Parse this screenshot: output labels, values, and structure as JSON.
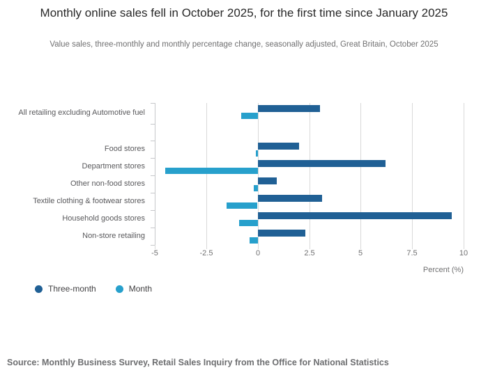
{
  "header": {
    "title": "Monthly online sales fell in October 2025, for the first time since January 2025",
    "subtitle": "Value sales, three-monthly and monthly percentage change, seasonally adjusted, Great Britain, October 2025"
  },
  "chart_data": {
    "type": "bar",
    "orientation": "horizontal",
    "title": "Monthly online sales fell in October 2025, for the first time since January 2025",
    "subtitle": "Value sales, three-monthly and monthly percentage change, seasonally adjusted, Great Britain, October 2025",
    "categories": [
      "All retailing excluding Automotive fuel",
      "Food stores",
      "Department stores",
      "Other non-food stores",
      "Textile clothing & footwear stores",
      "Household goods stores",
      "Non-store retailing"
    ],
    "series": [
      {
        "name": "Three-month",
        "color": "#206095",
        "values": [
          3.0,
          2.0,
          6.2,
          0.9,
          3.1,
          9.4,
          2.3
        ]
      },
      {
        "name": "Month",
        "color": "#27a0cc",
        "values": [
          -0.8,
          -0.1,
          -4.5,
          -0.2,
          -1.5,
          -0.9,
          -0.4
        ]
      }
    ],
    "xlabel": "Percent (%)",
    "ylabel": "",
    "xlim": [
      -5,
      10
    ],
    "xticks": [
      -5,
      -2.5,
      0,
      2.5,
      5,
      7.5,
      10
    ],
    "grid": true,
    "legend_position": "bottom-left"
  },
  "legend": {
    "items": [
      {
        "label": "Three-month",
        "color": "#206095"
      },
      {
        "label": "Month",
        "color": "#27a0cc"
      }
    ]
  },
  "footer": {
    "source": "Source: Monthly Business Survey, Retail Sales Inquiry from the Office for National Statistics"
  },
  "colors": {
    "three_month": "#206095",
    "month": "#27a0cc",
    "gridline": "#d9d9d9",
    "axis": "#c6c7ca",
    "title_text": "#272727",
    "muted_text": "#707071"
  }
}
